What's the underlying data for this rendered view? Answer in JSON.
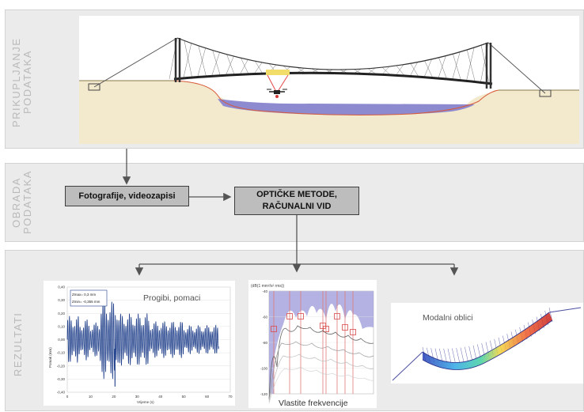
{
  "sections": {
    "acquisition": {
      "line1": "PRIKUPLJANJE",
      "line2": "PODATAKA"
    },
    "processing": {
      "line1": "OBRADA",
      "line2": "PODATAKA"
    },
    "results": {
      "label": "REZULTATI"
    }
  },
  "boxes": {
    "photos": "Fotografije, videozapisi",
    "optical_line1": "OPTIČKE METODE,",
    "optical_line2": "RAČUNALNI VID"
  },
  "results": {
    "deflections": {
      "title": "Progibi, pomaci",
      "legend_max": "Zmax= 0,3 mm",
      "legend_min": "Zmin= -0,355 mm",
      "ylabel": "Pomak (mm)",
      "xlabel": "Vrijeme (s)"
    },
    "frequencies": {
      "title": "Vlastite frekvencije",
      "header": "(dB(1 mm²/s² rms))"
    },
    "modes": {
      "title": "Modalni oblici"
    }
  },
  "colors": {
    "panel": "#ebebeb",
    "box_fill": "#bdbdbd",
    "water": "#8e8ad0",
    "ground": "#f3e9cd",
    "deflection_line": "#1f3f8a",
    "frequency_marker": "#e07a7a"
  },
  "chart_data": {
    "type": "line",
    "title": "",
    "xlabel": "Vrijeme (s)",
    "ylabel": "Pomak (mm)",
    "xlim": [
      0,
      70
    ],
    "ylim": [
      -0.4,
      0.4
    ],
    "x_ticks": [
      "0",
      "10",
      "20",
      "30",
      "40",
      "50",
      "60",
      "70"
    ],
    "y_ticks": [
      "0,40",
      "0,30",
      "0,20",
      "0,10",
      "0,00",
      "-0,10",
      "-0,20",
      "-0,30",
      "-0,40"
    ],
    "series": [
      {
        "values_summary": {
          "max": 0.3,
          "min": -0.355
        }
      }
    ]
  },
  "freq_chart": {
    "type": "line",
    "y_ticks": [
      "-40",
      "-60",
      "-80",
      "-100",
      "-120"
    ],
    "ylim": [
      -120,
      -40
    ]
  }
}
